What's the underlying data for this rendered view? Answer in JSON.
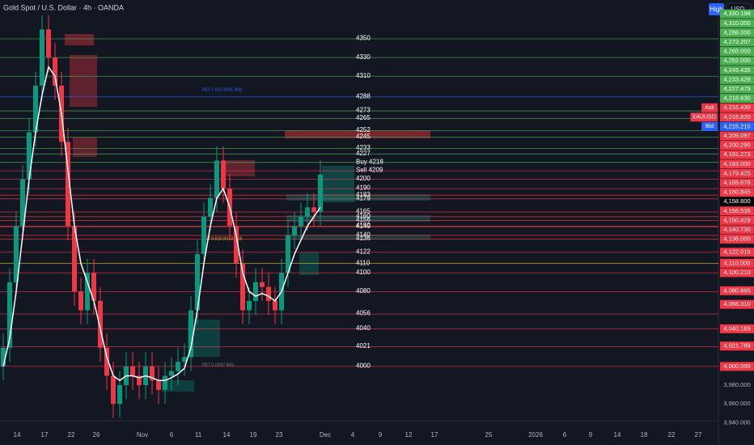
{
  "header": {
    "title": "Gold Spot / U.S. Dollar · 4h · OANDA",
    "buttons": [
      "High",
      "USD"
    ]
  },
  "chart_data": {
    "type": "candlestick",
    "ylim": [
      3942,
      4391.5
    ],
    "up_color": "#089981",
    "down_color": "#f23645",
    "open": [
      4000,
      4020,
      4090,
      4150,
      4200,
      4250,
      4300,
      4360,
      4330,
      4300,
      4240,
      4150,
      4080,
      4060,
      4100,
      4070,
      4020,
      3990,
      3960,
      3980,
      4000,
      3990,
      3980,
      4000,
      3985,
      3975,
      3990,
      3995,
      4005,
      4010,
      4060,
      4120,
      4160,
      4180,
      4220,
      4190,
      4150,
      4110,
      4060,
      4070,
      4090,
      4085,
      4070,
      4060,
      4100,
      4140,
      4150,
      4160,
      4170,
      4165
    ],
    "high": [
      4035,
      4105,
      4165,
      4215,
      4265,
      4315,
      4375,
      4375,
      4345,
      4315,
      4255,
      4165,
      4095,
      4115,
      4115,
      4085,
      4035,
      4005,
      3995,
      4015,
      4015,
      4005,
      4015,
      4015,
      4000,
      4005,
      4010,
      4020,
      4025,
      4075,
      4135,
      4175,
      4195,
      4235,
      4235,
      4205,
      4165,
      4125,
      4085,
      4105,
      4105,
      4100,
      4085,
      4115,
      4155,
      4165,
      4175,
      4185,
      4185,
      4220
    ],
    "low": [
      3985,
      4005,
      4075,
      4135,
      4185,
      4235,
      4285,
      4315,
      4285,
      4225,
      4135,
      4065,
      4045,
      4045,
      4055,
      4005,
      3975,
      3945,
      3945,
      3965,
      3975,
      3965,
      3965,
      3970,
      3960,
      3960,
      3975,
      3980,
      3990,
      3995,
      4045,
      4105,
      4145,
      4165,
      4175,
      4135,
      4095,
      4045,
      4045,
      4055,
      4070,
      4055,
      4045,
      4045,
      4085,
      4125,
      4135,
      4145,
      4150,
      4150
    ],
    "close": [
      4020,
      4090,
      4150,
      4200,
      4250,
      4300,
      4360,
      4330,
      4300,
      4240,
      4150,
      4080,
      4060,
      4100,
      4070,
      4020,
      3990,
      3960,
      3980,
      4000,
      3990,
      3980,
      4000,
      3985,
      3975,
      3990,
      3995,
      4005,
      4010,
      4060,
      4120,
      4160,
      4180,
      4220,
      4190,
      4150,
      4110,
      4060,
      4070,
      4090,
      4085,
      4070,
      4060,
      4100,
      4140,
      4150,
      4160,
      4170,
      4165,
      4205
    ],
    "ma": {
      "color": "#ffffff",
      "values": [
        4000,
        4030,
        4080,
        4140,
        4200,
        4250,
        4290,
        4320,
        4310,
        4270,
        4210,
        4150,
        4110,
        4090,
        4070,
        4040,
        4010,
        3990,
        3985,
        3990,
        3990,
        3988,
        3990,
        3988,
        3985,
        3985,
        3988,
        3992,
        3998,
        4020,
        4060,
        4110,
        4150,
        4180,
        4190,
        4170,
        4140,
        4100,
        4080,
        4075,
        4078,
        4075,
        4070,
        4080,
        4100,
        4120,
        4135,
        4150,
        4160,
        4170
      ]
    },
    "time_labels": [
      "14",
      "17",
      "22",
      "26",
      "Nov",
      "6",
      "11",
      "14",
      "19",
      "23",
      "Dec",
      "4",
      "9",
      "12",
      "17",
      "25",
      "2026",
      "6",
      "9",
      "14",
      "18",
      "22",
      "27"
    ],
    "levels": [
      {
        "value": 4350,
        "label": "4350",
        "color": "#4caf50"
      },
      {
        "value": 4330,
        "label": "4330",
        "color": "#4caf50"
      },
      {
        "value": 4310,
        "label": "4310",
        "color": "#4caf50"
      },
      {
        "value": 4288,
        "label": "4288",
        "color": "#2962ff"
      },
      {
        "value": 4273,
        "label": "4273",
        "color": "#4caf50"
      },
      {
        "value": 4265,
        "label": "4265",
        "color": "#4caf50"
      },
      {
        "value": 4252,
        "label": "4252",
        "color": "#4caf50"
      },
      {
        "value": 4245,
        "label": "4245",
        "color": "#4caf50"
      },
      {
        "value": 4233,
        "label": "4233",
        "color": "#4caf50"
      },
      {
        "value": 4227,
        "label": "4227",
        "color": "#4caf50"
      },
      {
        "value": 4218,
        "label": "Buy 4218",
        "color": "#4caf50"
      },
      {
        "value": 4209,
        "label": "Sell 4209",
        "color": "#f23645"
      },
      {
        "value": 4200,
        "label": "4200",
        "color": "#f23645"
      },
      {
        "value": 4190,
        "label": "4190",
        "color": "#f23645"
      },
      {
        "value": 4183,
        "label": "4183",
        "color": "#f23645"
      },
      {
        "value": 4179,
        "label": "4179",
        "color": "#f23645"
      },
      {
        "value": 4165,
        "label": "4165",
        "color": "#f23645"
      },
      {
        "value": 4160,
        "label": "4160",
        "color": "#f23645"
      },
      {
        "value": 4156,
        "label": "4156",
        "color": "#f23645"
      },
      {
        "value": 4150,
        "label": "4150",
        "color": "#f23645"
      },
      {
        "value": 4149,
        "label": "4149",
        "color": "#f23645"
      },
      {
        "value": 4140,
        "label": "4140",
        "color": "#f23645"
      },
      {
        "value": 4136,
        "label": "4136",
        "color": "#f23645"
      },
      {
        "value": 4122,
        "label": "4122",
        "color": "#f23645"
      },
      {
        "value": 4110,
        "label": "4110",
        "color": "#e6c229"
      },
      {
        "value": 4100,
        "label": "4100",
        "color": "#f23645"
      },
      {
        "value": 4080,
        "label": "4080",
        "color": "#f23645"
      },
      {
        "value": 4056,
        "label": "4056",
        "color": "#f23645"
      },
      {
        "value": 4040,
        "label": "4040",
        "color": "#f23645"
      },
      {
        "value": 4021,
        "label": "4021",
        "color": "#f23645"
      },
      {
        "value": 4000,
        "label": "4000",
        "color": "#f23645"
      }
    ],
    "fib_labels": [
      {
        "value": 4291.968,
        "label": "RET 1.618 (4291.968)",
        "color": "#2962ff"
      },
      {
        "value": 4132.953,
        "label": "RET 0.618 (4132.953)",
        "color": "#e6c229"
      },
      {
        "value": 3997.965,
        "label": "RET 0 (3997.965)",
        "color": "#787b86"
      }
    ],
    "price_labels": [
      {
        "value": 4330.198,
        "label": "4,330.198",
        "color": "#4caf50"
      },
      {
        "value": 4310,
        "label": "4,310.000",
        "color": "#4caf50"
      },
      {
        "value": 4288,
        "label": "4,288.000",
        "color": "#4caf50"
      },
      {
        "value": 4273.207,
        "label": "4,273.207",
        "color": "#4caf50"
      },
      {
        "value": 4265,
        "label": "4,265.000",
        "color": "#4caf50"
      },
      {
        "value": 4252,
        "label": "4,252.000",
        "color": "#4caf50"
      },
      {
        "value": 4245.435,
        "label": "4,245.435",
        "color": "#4caf50"
      },
      {
        "value": 4233.428,
        "label": "4,233.428",
        "color": "#4caf50"
      },
      {
        "value": 4227.479,
        "label": "4,227.479",
        "color": "#4caf50"
      },
      {
        "value": 4218.63,
        "label": "4,218.630",
        "color": "#4caf50"
      },
      {
        "value": 4216.43,
        "label": "4,216.430",
        "color": "#f23645",
        "tag": "Ask"
      },
      {
        "value": 4215.82,
        "label": "4,215.820",
        "color": "#f23645",
        "tag": "XAUUSD"
      },
      {
        "value": 4215.21,
        "label": "4,215.210",
        "color": "#2962ff",
        "tag": "Bid"
      },
      {
        "value": 4209.097,
        "label": "4,209.097",
        "color": "#f23645"
      },
      {
        "value": 4200.29,
        "label": "4,200.290",
        "color": "#f23645"
      },
      {
        "value": 4191.273,
        "label": "4,191.273",
        "color": "#f23645"
      },
      {
        "value": 4183,
        "label": "4,183.000",
        "color": "#f23645"
      },
      {
        "value": 4179.425,
        "label": "4,179.425",
        "color": "#f23645"
      },
      {
        "value": 4165.678,
        "label": "4,165.678",
        "color": "#f23645"
      },
      {
        "value": 4160.845,
        "label": "4,160.845",
        "color": "#f23645"
      },
      {
        "value": 4158.8,
        "label": "4,158.800",
        "color": "#000000"
      },
      {
        "value": 4156.535,
        "label": "4,156.535",
        "color": "#f23645"
      },
      {
        "value": 4150.429,
        "label": "4,150.429",
        "color": "#f23645"
      },
      {
        "value": 4140.73,
        "label": "4,140.730",
        "color": "#f23645"
      },
      {
        "value": 4136,
        "label": "4,136.000",
        "color": "#f23645"
      },
      {
        "value": 4122.016,
        "label": "4,122.016",
        "color": "#f23645"
      },
      {
        "value": 4110,
        "label": "4,110.000",
        "color": "#f23645"
      },
      {
        "value": 4100.21,
        "label": "4,100.210",
        "color": "#f23645"
      },
      {
        "value": 4080.865,
        "label": "4,080.865",
        "color": "#f23645"
      },
      {
        "value": 4066.31,
        "label": "4,066.310",
        "color": "#f23645"
      },
      {
        "value": 4040.189,
        "label": "4,040.189",
        "color": "#f23645"
      },
      {
        "value": 4021.789,
        "label": "4,021.789",
        "color": "#f23645"
      },
      {
        "value": 4000,
        "label": "4,000.000",
        "color": "#f23645"
      },
      {
        "value": 3980,
        "label": "3,980.000",
        "color": "#131722"
      },
      {
        "value": 3960,
        "label": "3,960.000",
        "color": "#131722"
      },
      {
        "value": 3940,
        "label": "3,940.000",
        "color": "#131722"
      }
    ]
  }
}
